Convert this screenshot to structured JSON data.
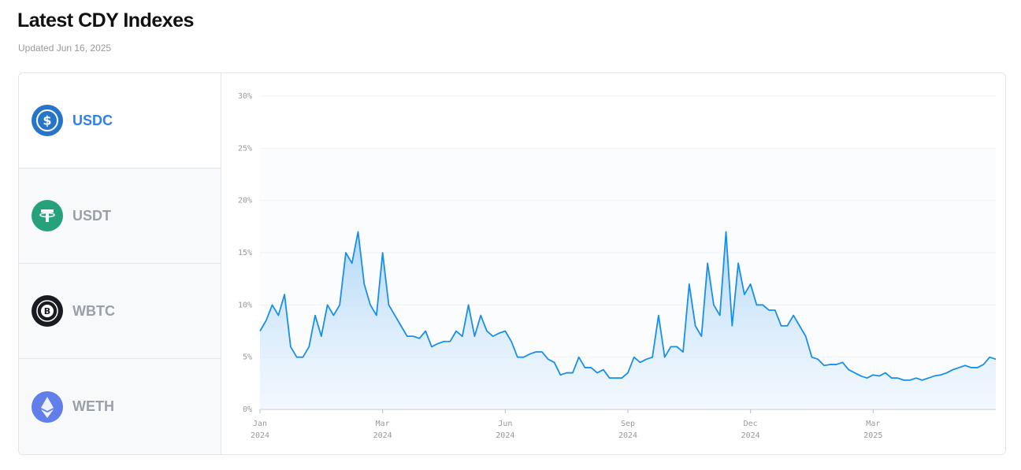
{
  "header": {
    "title": "Latest CDY Indexes",
    "subtitle": "Updated Jun 16, 2025"
  },
  "tabs": [
    {
      "label": "USDC",
      "active": true
    },
    {
      "label": "USDT",
      "active": false
    },
    {
      "label": "WBTC",
      "active": false
    },
    {
      "label": "WETH",
      "active": false
    }
  ],
  "chart_data": {
    "type": "area",
    "color": "#1a8fe8",
    "grid": true,
    "ylim": [
      0,
      30
    ],
    "yticks": [
      {
        "value": 0,
        "label": "0%"
      },
      {
        "value": 5,
        "label": "5%"
      },
      {
        "value": 10,
        "label": "10%"
      },
      {
        "value": 15,
        "label": "15%"
      },
      {
        "value": 20,
        "label": "20%"
      },
      {
        "value": 25,
        "label": "25%"
      },
      {
        "value": 30,
        "label": "30%"
      }
    ],
    "categories": [
      "Jan\n2024",
      null,
      null,
      null,
      null,
      null,
      null,
      null,
      null,
      null,
      null,
      null,
      null,
      null,
      null,
      null,
      null,
      null,
      null,
      null,
      "Mar\n2024",
      null,
      null,
      null,
      null,
      null,
      null,
      null,
      null,
      null,
      null,
      null,
      null,
      null,
      null,
      null,
      null,
      null,
      null,
      null,
      "Jun\n2024",
      null,
      null,
      null,
      null,
      null,
      null,
      null,
      null,
      null,
      null,
      null,
      null,
      null,
      null,
      null,
      null,
      null,
      null,
      null,
      "Sep\n2024",
      null,
      null,
      null,
      null,
      null,
      null,
      null,
      null,
      null,
      null,
      null,
      null,
      null,
      null,
      null,
      null,
      null,
      null,
      null,
      "Dec\n2024",
      null,
      null,
      null,
      null,
      null,
      null,
      null,
      null,
      null,
      null,
      null,
      null,
      null,
      null,
      null,
      null,
      null,
      null,
      null,
      "Mar\n2025",
      null,
      null,
      null,
      null,
      null,
      null,
      null,
      null,
      null,
      null,
      null,
      null,
      null,
      null,
      null,
      null,
      null,
      null,
      null,
      null
    ],
    "values": [
      7.5,
      8.5,
      10,
      9,
      11,
      6,
      5,
      5,
      6,
      9,
      7,
      10,
      9,
      10,
      15,
      14,
      17,
      12,
      10,
      9,
      15,
      10,
      9,
      8,
      7,
      7,
      6.8,
      7.5,
      6,
      6.3,
      6.5,
      6.5,
      7.5,
      7,
      10,
      7,
      9,
      7.5,
      7,
      7.3,
      7.5,
      6.5,
      5,
      5,
      5.3,
      5.5,
      5.5,
      4.8,
      4.5,
      3.3,
      3.5,
      3.5,
      5,
      4,
      4,
      3.5,
      3.8,
      3,
      3,
      3,
      3.5,
      5,
      4.5,
      4.8,
      5,
      9,
      5,
      6,
      6,
      5.5,
      12,
      8,
      7,
      14,
      10,
      9,
      17,
      8,
      14,
      11,
      12,
      10,
      10,
      9.5,
      9.5,
      8,
      8,
      9,
      8,
      7,
      5,
      4.8,
      4.2,
      4.3,
      4.3,
      4.5,
      3.8,
      3.5,
      3.2,
      3,
      3.3,
      3.2,
      3.5,
      3,
      3,
      2.8,
      2.8,
      3,
      2.8,
      3,
      3.2,
      3.3,
      3.5,
      3.8,
      4,
      4.2,
      4,
      4,
      4.3,
      5,
      4.8
    ]
  }
}
